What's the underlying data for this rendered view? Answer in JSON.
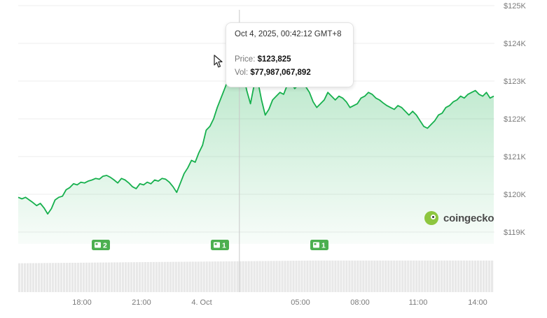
{
  "chart_data": {
    "type": "area",
    "x_tick_labels": [
      "18:00",
      "21:00",
      "4. Oct",
      "05:00",
      "08:00",
      "11:00",
      "14:00"
    ],
    "y_tick_labels": [
      "$119K",
      "$120K",
      "$121K",
      "$122K",
      "$123K",
      "$124K",
      "$125K"
    ],
    "ylim": [
      118900,
      125000
    ],
    "grid": true,
    "series": [
      {
        "values": [
          119920,
          119880,
          119920,
          119850,
          119780,
          119700,
          119760,
          119640,
          119480,
          119620,
          119850,
          119920,
          119950,
          120120,
          120180,
          120280,
          120250,
          120320,
          120300,
          120350,
          120380,
          120420,
          120400,
          120480,
          120500,
          120450,
          120380,
          120300,
          120420,
          120380,
          120300,
          120200,
          120150,
          120280,
          120250,
          120320,
          120280,
          120380,
          120350,
          120420,
          120400,
          120320,
          120200,
          120050,
          120300,
          120550,
          120700,
          120900,
          120850,
          121100,
          121300,
          121700,
          121800,
          122000,
          122300,
          122550,
          122800,
          123050,
          123400,
          123650,
          123825,
          123200,
          122750,
          122400,
          122900,
          123000,
          122500,
          122100,
          122250,
          122500,
          122600,
          122700,
          122650,
          122900,
          122950,
          122800,
          122900,
          122850,
          122850,
          122700,
          122450,
          122300,
          122400,
          122500,
          122700,
          122600,
          122500,
          122600,
          122550,
          122450,
          122300,
          122350,
          122400,
          122550,
          122600,
          122700,
          122650,
          122550,
          122500,
          122420,
          122350,
          122300,
          122250,
          122350,
          122300,
          122200,
          122100,
          122200,
          122100,
          121950,
          121800,
          121750,
          121850,
          121950,
          122100,
          122150,
          122300,
          122350,
          122450,
          122500,
          122600,
          122550,
          122650,
          122700,
          122750,
          122650,
          122600,
          122700,
          122550,
          122600
        ],
        "volume_start": 6300000000,
        "volume_end": 6900000000
      }
    ],
    "crosshair": {
      "date": "Oct 4, 2025, 00:42:12 GMT+8",
      "price_label": "Price:",
      "price": "$123,825",
      "volume_label": "Vol:",
      "volume": "$77,987,067,892"
    },
    "event_markers": [
      {
        "label": "2"
      },
      {
        "label": "1"
      },
      {
        "label": "1"
      }
    ],
    "colors": {
      "line": "#16b04d",
      "fill": "#16b04d",
      "volume_bar": "#e8e8e8",
      "marker": "#4caf50",
      "crosshair": "#c8c8c8"
    }
  },
  "brand": {
    "logo_text": "coingecko",
    "logo_icon": "coingecko-gecko-icon"
  }
}
